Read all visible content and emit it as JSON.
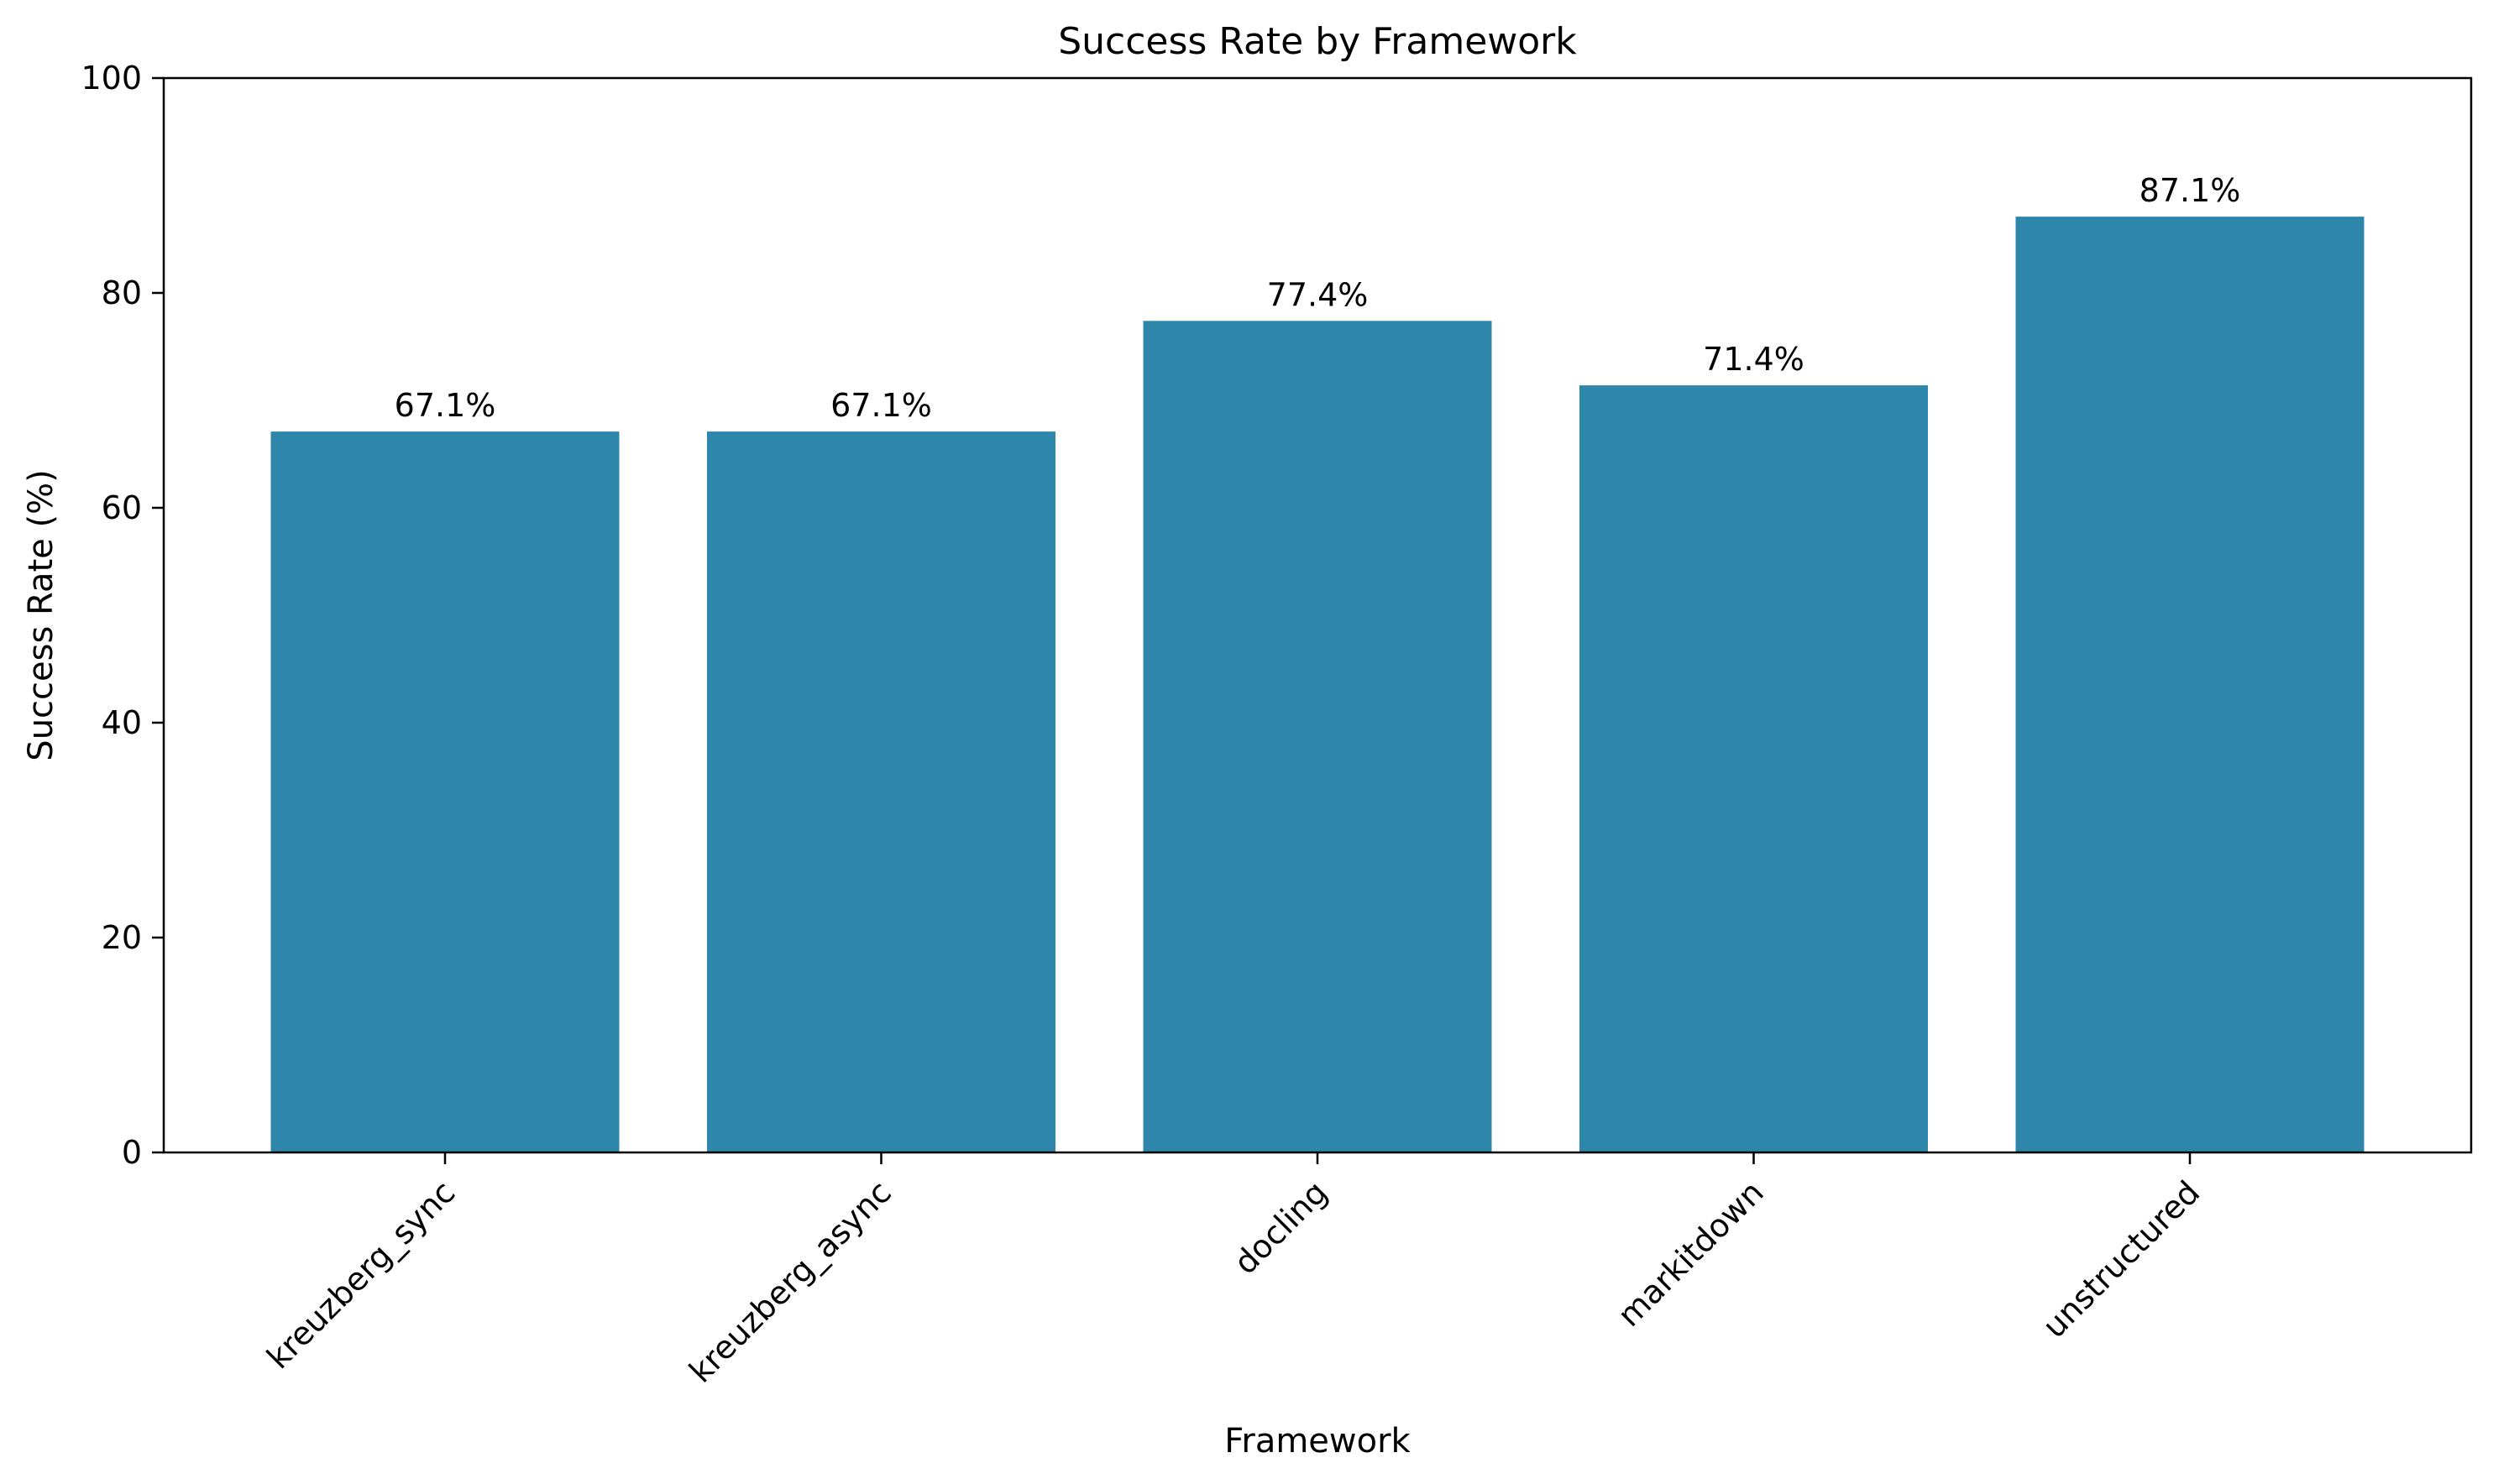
{
  "chart_data": {
    "type": "bar",
    "title": "Success Rate by Framework",
    "xlabel": "Framework",
    "ylabel": "Success Rate (%)",
    "categories": [
      "kreuzberg_sync",
      "kreuzberg_async",
      "docling",
      "markitdown",
      "unstructured"
    ],
    "values": [
      67.1,
      67.1,
      77.4,
      71.4,
      87.1
    ],
    "value_labels": [
      "67.1%",
      "67.1%",
      "77.4%",
      "71.4%",
      "87.1%"
    ],
    "ylim": [
      0,
      100
    ],
    "yticks": [
      0,
      20,
      40,
      60,
      80,
      100
    ],
    "ytick_labels": [
      "0",
      "20",
      "40",
      "60",
      "80",
      "100"
    ],
    "xtick_rotation": 45,
    "grid": false,
    "legend": "none",
    "bar_color": "#2e86ab"
  }
}
